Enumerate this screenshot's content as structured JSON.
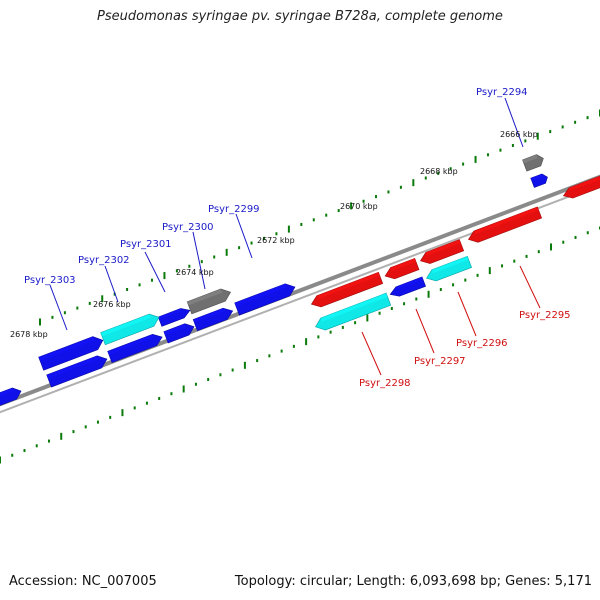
{
  "title": "Pseudomonas syringae pv. syringae B728a, complete genome",
  "footer": {
    "accession": "Accession: NC_007005",
    "topology": "Topology: circular; Length: 6,093,698 bp; Genes: 5,171"
  },
  "colors": {
    "forward_gene": "#1010e8",
    "reverse_gene": "#e41010",
    "cyan_gene": "#10e8e8",
    "grey_gene": "#707070",
    "ticks": "#0a7a0a",
    "backbone": "#8a8a8a",
    "forward_label": "#1a1ac8",
    "reverse_label": "#d01010"
  },
  "scale_labels": [
    "2666 kbp",
    "2668 kbp",
    "2670 kbp",
    "2672 kbp",
    "2674 kbp",
    "2676 kbp",
    "2678 kbp"
  ],
  "forward_gene_labels": [
    "Psyr_2294",
    "Psyr_2299",
    "Psyr_2300",
    "Psyr_2301",
    "Psyr_2302",
    "Psyr_2303"
  ],
  "reverse_gene_labels": [
    "Psyr_2295",
    "Psyr_2296",
    "Psyr_2297",
    "Psyr_2298"
  ]
}
